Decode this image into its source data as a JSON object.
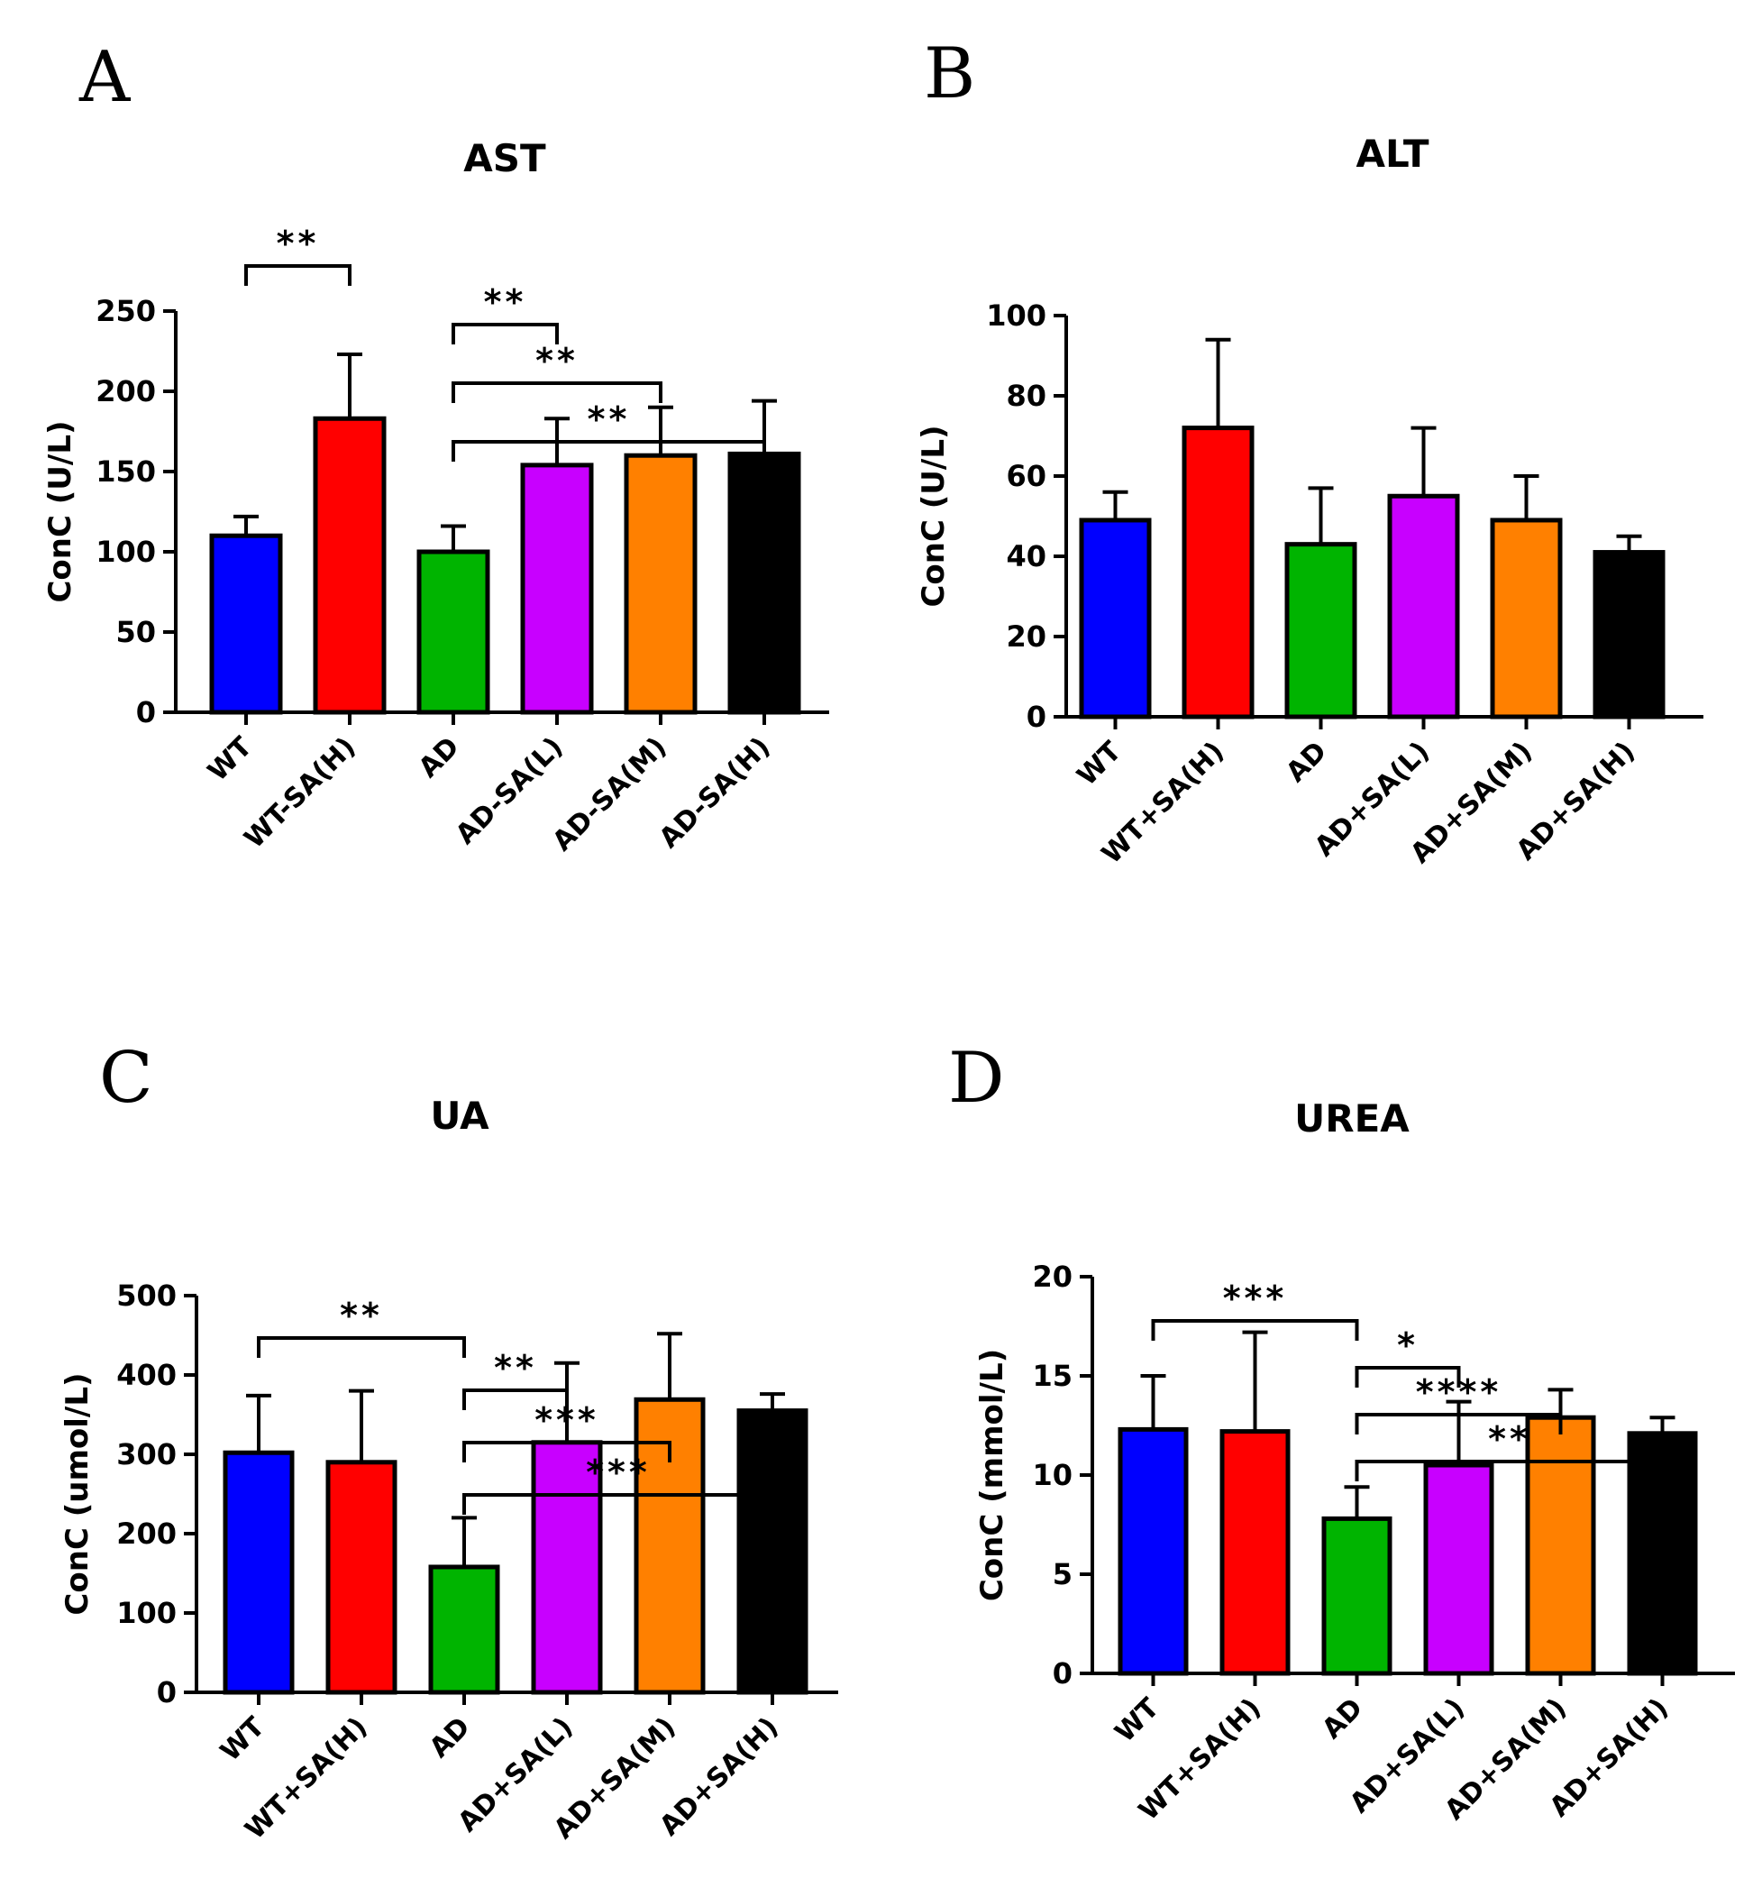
{
  "figure": {
    "colors": [
      "#0000ff",
      "#ff0000",
      "#00b400",
      "#c800ff",
      "#ff8000",
      "#000000"
    ]
  },
  "chart_data": [
    {
      "type": "bar",
      "panel": "A",
      "title": "AST",
      "ylabel": "ConC (U/L)",
      "ylim": [
        0,
        250
      ],
      "yticks": [
        0,
        50,
        100,
        150,
        200,
        250
      ],
      "categories": [
        "WT",
        "WT-SA(H)",
        "AD",
        "AD-SA(L)",
        "AD-SA(M)",
        "AD-SA(H)"
      ],
      "values": [
        110,
        183,
        100,
        154,
        160,
        161
      ],
      "errors": [
        12,
        40,
        16,
        29,
        30,
        33
      ],
      "significance": [
        {
          "from": 0,
          "to": 1,
          "label": "**"
        },
        {
          "from": 2,
          "to": 3,
          "label": "**"
        },
        {
          "from": 2,
          "to": 4,
          "label": "**"
        },
        {
          "from": 2,
          "to": 5,
          "label": "**"
        }
      ]
    },
    {
      "type": "bar",
      "panel": "B",
      "title": "ALT",
      "ylabel": "ConC (U/L)",
      "ylim": [
        0,
        100
      ],
      "yticks": [
        0,
        20,
        40,
        60,
        80,
        100
      ],
      "categories": [
        "WT",
        "WT+SA(H)",
        "AD",
        "AD+SA(L)",
        "AD+SA(M)",
        "AD+SA(H)"
      ],
      "values": [
        49,
        72,
        43,
        55,
        49,
        41
      ],
      "errors": [
        7,
        22,
        14,
        17,
        11,
        4
      ],
      "significance": []
    },
    {
      "type": "bar",
      "panel": "C",
      "title": "UA",
      "ylabel": "ConC (umol/L)",
      "ylim": [
        0,
        500
      ],
      "yticks": [
        0,
        100,
        200,
        300,
        400,
        500
      ],
      "categories": [
        "WT",
        "WT+SA(H)",
        "AD",
        "AD+SA(L)",
        "AD+SA(M)",
        "AD+SA(H)"
      ],
      "values": [
        302,
        290,
        158,
        315,
        369,
        355
      ],
      "errors": [
        72,
        90,
        62,
        100,
        83,
        21
      ],
      "significance": [
        {
          "from": 0,
          "to": 2,
          "label": "**"
        },
        {
          "from": 2,
          "to": 3,
          "label": "**"
        },
        {
          "from": 2,
          "to": 4,
          "label": "***"
        },
        {
          "from": 2,
          "to": 5,
          "label": "***"
        }
      ]
    },
    {
      "type": "bar",
      "panel": "D",
      "title": "UREA",
      "ylabel": "ConC (mmol/L)",
      "ylim": [
        0,
        20
      ],
      "yticks": [
        0,
        5,
        10,
        15,
        20
      ],
      "categories": [
        "WT",
        "WT+SA(H)",
        "AD",
        "AD+SA(L)",
        "AD+SA(M)",
        "AD+SA(H)"
      ],
      "values": [
        12.3,
        12.2,
        7.8,
        10.5,
        12.9,
        12.1
      ],
      "errors": [
        2.7,
        5.0,
        1.6,
        3.2,
        1.4,
        0.8
      ],
      "significance": [
        {
          "from": 0,
          "to": 2,
          "label": "***"
        },
        {
          "from": 2,
          "to": 3,
          "label": "*"
        },
        {
          "from": 2,
          "to": 4,
          "label": "****"
        },
        {
          "from": 2,
          "to": 5,
          "label": "**"
        }
      ]
    }
  ]
}
